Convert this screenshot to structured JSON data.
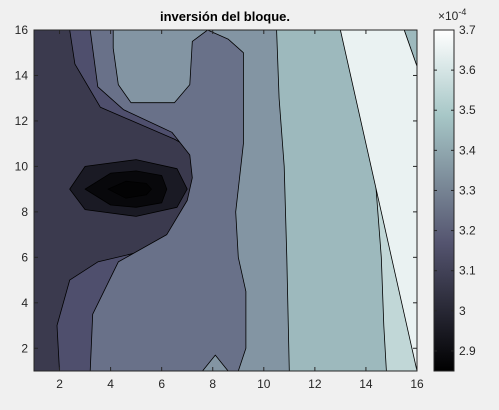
{
  "chart_data": {
    "type": "contourf",
    "title": "inversión del bloque.",
    "xlabel": "",
    "ylabel": "",
    "xlim": [
      1,
      16
    ],
    "ylim": [
      1,
      16
    ],
    "x_ticks": [
      2,
      4,
      6,
      8,
      10,
      12,
      14,
      16
    ],
    "y_ticks": [
      2,
      4,
      6,
      8,
      10,
      12,
      14,
      16
    ],
    "colorbar": {
      "range": [
        2.85,
        3.7
      ],
      "ticks": [
        2.9,
        3,
        3.1,
        3.2,
        3.3,
        3.4,
        3.5,
        3.6,
        3.7
      ],
      "exponent_label": "×10",
      "exponent_power": "-4",
      "colormap": "bone",
      "location": "right"
    },
    "levels": [
      2.9,
      3.0,
      3.1,
      3.2,
      3.3,
      3.4,
      3.5,
      3.6
    ],
    "grid": false,
    "regions": [
      {
        "name": "x-band-3.6-3.7",
        "level": 3.65,
        "polygon": [
          [
            16,
            1
          ],
          [
            16,
            14.4
          ],
          [
            15.5,
            16
          ],
          [
            13,
            16
          ]
        ]
      },
      {
        "name": "x-band-3.5-3.6",
        "level": 3.55,
        "polygon": [
          [
            10.5,
            16
          ],
          [
            15.5,
            16
          ],
          [
            16,
            14.4
          ],
          [
            16,
            1
          ],
          [
            14.8,
            1
          ],
          [
            14.7,
            3
          ],
          [
            14.6,
            6
          ],
          [
            14.4,
            9
          ],
          [
            14.3,
            11
          ],
          [
            13.8,
            14
          ],
          [
            13,
            16
          ]
        ]
      },
      {
        "name": "x-band-3.4-3.5",
        "level": 3.45,
        "polygon": [
          [
            16,
            1
          ],
          [
            16,
            16
          ],
          [
            10.5,
            16
          ],
          [
            10.6,
            13
          ],
          [
            10.8,
            10
          ],
          [
            10.9,
            6
          ],
          [
            11,
            1
          ]
        ]
      },
      {
        "name": "right-3.3-3.4",
        "level": 3.35,
        "polygon": [
          [
            16,
            1
          ],
          [
            16,
            16
          ],
          [
            7.8,
            16
          ],
          [
            8.6,
            15.6
          ],
          [
            9.2,
            15
          ],
          [
            9.2,
            11
          ],
          [
            8.9,
            8
          ],
          [
            9,
            6
          ],
          [
            9.3,
            4.5
          ],
          [
            9.3,
            2
          ],
          [
            9,
            1
          ]
        ]
      },
      {
        "name": "top-stem-3.3-3.4",
        "level": 3.35,
        "polygon": [
          [
            4.1,
            16
          ],
          [
            7.8,
            16
          ],
          [
            7.2,
            15.5
          ],
          [
            7.1,
            13.6
          ],
          [
            6.5,
            12.8
          ],
          [
            4.8,
            12.8
          ],
          [
            4.3,
            13.6
          ],
          [
            4.1,
            15.2
          ]
        ]
      },
      {
        "name": "bottom-pocket",
        "level": 3.35,
        "polygon": [
          [
            7.6,
            1
          ],
          [
            8.6,
            1
          ],
          [
            8.1,
            1.7
          ]
        ]
      },
      {
        "name": "mid-3.2-3.3",
        "level": 3.25,
        "polygon": [
          [
            3.2,
            16
          ],
          [
            16,
            16
          ],
          [
            16,
            1
          ],
          [
            3.2,
            1
          ],
          [
            3.3,
            3.5
          ],
          [
            4.3,
            5.8
          ],
          [
            6.2,
            7
          ],
          [
            7,
            8.5
          ],
          [
            7.2,
            9.5
          ],
          [
            7.1,
            10.5
          ],
          [
            6.4,
            11.5
          ],
          [
            4.5,
            12.5
          ],
          [
            3.5,
            13.5
          ]
        ]
      },
      {
        "name": "mid-3.1-3.2",
        "level": 3.15,
        "polygon": [
          [
            2.4,
            16
          ],
          [
            16,
            16
          ],
          [
            16,
            1
          ],
          [
            2,
            1
          ],
          [
            1.9,
            3
          ],
          [
            2.4,
            5
          ],
          [
            3.5,
            5.8
          ],
          [
            6.5,
            6.6
          ],
          [
            7.6,
            7.8
          ],
          [
            7.9,
            9
          ],
          [
            7.6,
            10.5
          ],
          [
            6.5,
            11.2
          ],
          [
            3.6,
            12.6
          ],
          [
            2.6,
            14.5
          ]
        ]
      },
      {
        "name": "ring-2.9-3.0",
        "level": 2.95,
        "polygon": [
          [
            2.4,
            9
          ],
          [
            3,
            8.1
          ],
          [
            5,
            7.8
          ],
          [
            6.6,
            8.2
          ],
          [
            7,
            9
          ],
          [
            6.6,
            9.9
          ],
          [
            5,
            10.3
          ],
          [
            3,
            10
          ]
        ]
      },
      {
        "name": "ring-2.8-2.9",
        "level": 2.88,
        "polygon": [
          [
            3,
            9
          ],
          [
            4,
            8.3
          ],
          [
            5,
            8.2
          ],
          [
            6,
            8.4
          ],
          [
            6.2,
            9
          ],
          [
            6,
            9.6
          ],
          [
            5,
            9.8
          ],
          [
            4,
            9.7
          ]
        ]
      },
      {
        "name": "core",
        "level": 2.86,
        "polygon": [
          [
            3.9,
            9
          ],
          [
            4.6,
            8.6
          ],
          [
            5.4,
            8.75
          ],
          [
            5.6,
            9
          ],
          [
            5.4,
            9.25
          ],
          [
            4.6,
            9.35
          ]
        ]
      }
    ]
  }
}
